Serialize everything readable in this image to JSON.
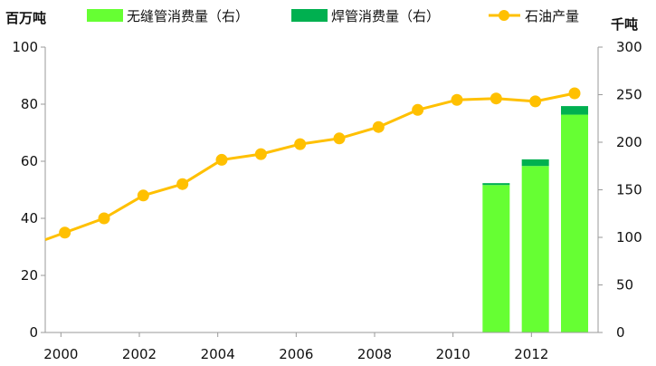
{
  "chart_data": {
    "type": "bar+line",
    "left_axis": {
      "label": "百万吨",
      "ylim": [
        0,
        100
      ],
      "ticks": [
        0,
        20,
        40,
        60,
        80,
        100
      ]
    },
    "right_axis": {
      "label": "千吨",
      "ylim": [
        0,
        300
      ],
      "ticks": [
        0,
        50,
        100,
        150,
        200,
        250,
        300
      ]
    },
    "x_axis": {
      "min": 1999.6,
      "max": 2013.7,
      "tick_labels": [
        "2000",
        "2002",
        "2004",
        "2006",
        "2008",
        "2010",
        "2012"
      ]
    },
    "legend": {
      "placement": "top",
      "items": [
        {
          "label": "无缝管消费量（右）",
          "kind": "bar",
          "color": "#66ff33"
        },
        {
          "label": "焊管消费量（右）",
          "kind": "bar",
          "color": "#00b050"
        },
        {
          "label": "石油产量",
          "kind": "line",
          "color": "#ffc000"
        }
      ]
    },
    "series": [
      {
        "key": "oil",
        "axis": "left",
        "type": "line",
        "color": "#ffc000",
        "x": [
          1999.6,
          2000.1,
          2001.1,
          2002.1,
          2003.1,
          2004.1,
          2005.1,
          2006.1,
          2007.1,
          2008.1,
          2009.1,
          2010.1,
          2011.1,
          2012.1,
          2013.1
        ],
        "y": [
          32.5,
          35,
          40,
          48,
          52,
          60.5,
          62.5,
          66,
          68,
          72,
          78,
          81.5,
          82,
          81,
          83.8
        ]
      },
      {
        "key": "seamless",
        "axis": "right",
        "type": "bar",
        "color": "#66ff33",
        "x": [
          2011.1,
          2012.1,
          2013.1
        ],
        "y": [
          155,
          175,
          229
        ]
      },
      {
        "key": "welded",
        "axis": "right",
        "type": "bar",
        "stacked_on": "seamless",
        "color": "#00b050",
        "x": [
          2011.1,
          2012.1,
          2013.1
        ],
        "y": [
          2,
          7,
          9
        ]
      }
    ],
    "grid": false
  }
}
